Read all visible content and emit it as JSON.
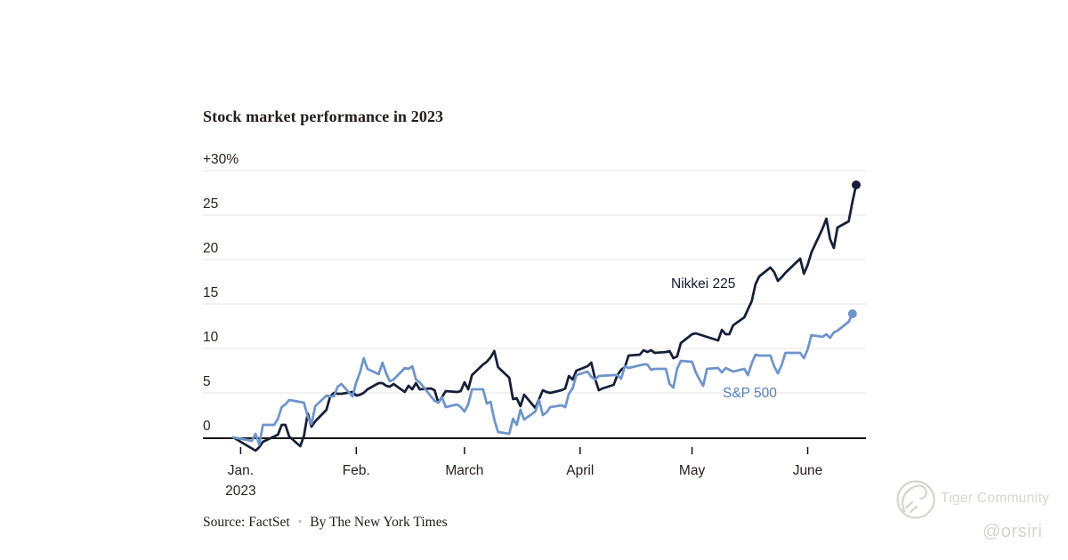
{
  "chart_data": {
    "type": "line",
    "title": "Stock market performance in 2023",
    "source": "Source: FactSet",
    "source_separator": "●",
    "byline": "By The New York Times",
    "grid_color": "#e8e4e0",
    "axis_color": "#17110e",
    "x_axis": {
      "tick_labels": [
        "Jan.",
        "Feb.",
        "March",
        "April",
        "May",
        "June"
      ],
      "tick_days": [
        2,
        33,
        62,
        93,
        123,
        154
      ],
      "sub_label": "2023",
      "domain_days": [
        0,
        167
      ],
      "note": "days since Dec 30 2022 close"
    },
    "y_axis": {
      "unit": "percent change",
      "range": [
        0,
        30
      ],
      "labels": [
        {
          "value": 30,
          "text": "+30%"
        },
        {
          "value": 25,
          "text": "25"
        },
        {
          "value": 20,
          "text": "20"
        },
        {
          "value": 15,
          "text": "15"
        },
        {
          "value": 10,
          "text": "10"
        },
        {
          "value": 5,
          "text": "5"
        },
        {
          "value": 0,
          "text": "0"
        }
      ]
    },
    "series": [
      {
        "name": "Nikkei 225",
        "color": "#151f38",
        "label_color": "#10192e",
        "end_dot": true,
        "points": [
          [
            0,
            0
          ],
          [
            6,
            -1.5
          ],
          [
            7,
            -1.1
          ],
          [
            8,
            -0.5
          ],
          [
            12,
            0.3
          ],
          [
            13,
            1.4
          ],
          [
            14,
            1.4
          ],
          [
            15,
            0.1
          ],
          [
            18,
            -1.0
          ],
          [
            19,
            0.2
          ],
          [
            20,
            2.7
          ],
          [
            21,
            1.2
          ],
          [
            22,
            1.8
          ],
          [
            25,
            3.1
          ],
          [
            26,
            4.6
          ],
          [
            27,
            5.0
          ],
          [
            28,
            4.9
          ],
          [
            29,
            4.9
          ],
          [
            32,
            5.1
          ],
          [
            33,
            4.7
          ],
          [
            34,
            4.8
          ],
          [
            35,
            5.0
          ],
          [
            36,
            5.4
          ],
          [
            39,
            6.1
          ],
          [
            40,
            6.1
          ],
          [
            41,
            5.8
          ],
          [
            42,
            5.7
          ],
          [
            43,
            6.0
          ],
          [
            46,
            5.1
          ],
          [
            47,
            5.8
          ],
          [
            48,
            5.4
          ],
          [
            49,
            6.1
          ],
          [
            50,
            5.4
          ],
          [
            53,
            5.5
          ],
          [
            54,
            5.3
          ],
          [
            55,
            3.9
          ],
          [
            57,
            5.2
          ],
          [
            60,
            5.1
          ],
          [
            61,
            5.2
          ],
          [
            62,
            6.2
          ],
          [
            63,
            5.4
          ],
          [
            64,
            7.0
          ],
          [
            67,
            8.2
          ],
          [
            68,
            8.5
          ],
          [
            69,
            9.0
          ],
          [
            70,
            9.7
          ],
          [
            71,
            7.9
          ],
          [
            74,
            6.7
          ],
          [
            75,
            4.3
          ],
          [
            76,
            4.4
          ],
          [
            77,
            3.5
          ],
          [
            78,
            4.8
          ],
          [
            81,
            3.3
          ],
          [
            83,
            5.3
          ],
          [
            84,
            5.1
          ],
          [
            85,
            5.0
          ],
          [
            88,
            5.3
          ],
          [
            89,
            5.5
          ],
          [
            90,
            6.9
          ],
          [
            91,
            6.5
          ],
          [
            92,
            7.5
          ],
          [
            95,
            8.0
          ],
          [
            96,
            8.4
          ],
          [
            97,
            6.6
          ],
          [
            98,
            5.3
          ],
          [
            99,
            5.5
          ],
          [
            102,
            5.9
          ],
          [
            103,
            7.0
          ],
          [
            104,
            7.6
          ],
          [
            105,
            7.9
          ],
          [
            106,
            9.2
          ],
          [
            109,
            9.3
          ],
          [
            110,
            9.8
          ],
          [
            111,
            9.6
          ],
          [
            112,
            9.8
          ],
          [
            113,
            9.5
          ],
          [
            116,
            9.6
          ],
          [
            117,
            9.7
          ],
          [
            118,
            8.9
          ],
          [
            119,
            9.1
          ],
          [
            120,
            10.6
          ],
          [
            123,
            11.6
          ],
          [
            124,
            11.7
          ],
          [
            130,
            10.9
          ],
          [
            131,
            12.1
          ],
          [
            132,
            11.6
          ],
          [
            133,
            11.6
          ],
          [
            134,
            12.6
          ],
          [
            137,
            13.5
          ],
          [
            138,
            14.4
          ],
          [
            139,
            15.3
          ],
          [
            140,
            17.2
          ],
          [
            141,
            18.1
          ],
          [
            144,
            19.1
          ],
          [
            145,
            18.6
          ],
          [
            146,
            17.6
          ],
          [
            147,
            18.0
          ],
          [
            148,
            18.5
          ],
          [
            151,
            19.7
          ],
          [
            152,
            20.1
          ],
          [
            153,
            18.4
          ],
          [
            154,
            19.4
          ],
          [
            155,
            20.8
          ],
          [
            158,
            23.5
          ],
          [
            159,
            24.6
          ],
          [
            160,
            22.3
          ],
          [
            161,
            21.3
          ],
          [
            162,
            23.6
          ],
          [
            165,
            24.3
          ],
          [
            166,
            26.5
          ],
          [
            167,
            28.4
          ]
        ]
      },
      {
        "name": "S&P 500",
        "color": "#6e95cb",
        "label_color": "#4f80bb",
        "end_dot": true,
        "points": [
          [
            0,
            0
          ],
          [
            5,
            -0.4
          ],
          [
            6,
            0.4
          ],
          [
            7,
            -0.8
          ],
          [
            8,
            1.4
          ],
          [
            11,
            1.4
          ],
          [
            12,
            2.1
          ],
          [
            13,
            3.4
          ],
          [
            14,
            3.7
          ],
          [
            15,
            4.2
          ],
          [
            19,
            3.9
          ],
          [
            20,
            2.3
          ],
          [
            21,
            1.5
          ],
          [
            22,
            3.5
          ],
          [
            25,
            4.7
          ],
          [
            26,
            4.6
          ],
          [
            27,
            4.6
          ],
          [
            28,
            5.7
          ],
          [
            29,
            6.0
          ],
          [
            32,
            4.6
          ],
          [
            33,
            6.2
          ],
          [
            34,
            7.3
          ],
          [
            35,
            8.9
          ],
          [
            36,
            7.7
          ],
          [
            39,
            7.1
          ],
          [
            40,
            8.4
          ],
          [
            41,
            7.2
          ],
          [
            42,
            6.3
          ],
          [
            43,
            6.5
          ],
          [
            46,
            7.8
          ],
          [
            47,
            7.7
          ],
          [
            48,
            8.0
          ],
          [
            49,
            6.5
          ],
          [
            50,
            6.2
          ],
          [
            54,
            4.1
          ],
          [
            55,
            3.9
          ],
          [
            56,
            4.5
          ],
          [
            57,
            3.4
          ],
          [
            60,
            3.7
          ],
          [
            61,
            3.4
          ],
          [
            62,
            2.9
          ],
          [
            63,
            3.7
          ],
          [
            64,
            5.4
          ],
          [
            67,
            5.4
          ],
          [
            68,
            3.8
          ],
          [
            69,
            4.0
          ],
          [
            70,
            2.0
          ],
          [
            71,
            0.6
          ],
          [
            74,
            0.4
          ],
          [
            75,
            2.1
          ],
          [
            76,
            1.4
          ],
          [
            77,
            3.1
          ],
          [
            78,
            2.0
          ],
          [
            81,
            2.9
          ],
          [
            82,
            4.2
          ],
          [
            83,
            2.5
          ],
          [
            84,
            2.8
          ],
          [
            85,
            3.4
          ],
          [
            88,
            3.6
          ],
          [
            89,
            3.4
          ],
          [
            90,
            4.9
          ],
          [
            91,
            5.5
          ],
          [
            92,
            7.0
          ],
          [
            95,
            7.4
          ],
          [
            96,
            6.8
          ],
          [
            97,
            6.5
          ],
          [
            98,
            6.9
          ],
          [
            102,
            7.0
          ],
          [
            103,
            7.0
          ],
          [
            104,
            6.6
          ],
          [
            105,
            8.0
          ],
          [
            106,
            7.8
          ],
          [
            109,
            8.1
          ],
          [
            110,
            8.2
          ],
          [
            111,
            8.2
          ],
          [
            112,
            7.6
          ],
          [
            113,
            7.7
          ],
          [
            116,
            7.7
          ],
          [
            117,
            6.0
          ],
          [
            118,
            5.6
          ],
          [
            119,
            7.7
          ],
          [
            120,
            8.6
          ],
          [
            123,
            8.5
          ],
          [
            124,
            7.3
          ],
          [
            125,
            6.5
          ],
          [
            126,
            5.8
          ],
          [
            127,
            7.7
          ],
          [
            130,
            7.8
          ],
          [
            131,
            7.3
          ],
          [
            132,
            7.8
          ],
          [
            133,
            7.6
          ],
          [
            134,
            7.4
          ],
          [
            137,
            7.7
          ],
          [
            138,
            7.0
          ],
          [
            139,
            8.3
          ],
          [
            140,
            9.3
          ],
          [
            141,
            9.2
          ],
          [
            144,
            9.2
          ],
          [
            145,
            8.0
          ],
          [
            146,
            7.2
          ],
          [
            147,
            8.1
          ],
          [
            148,
            9.5
          ],
          [
            152,
            9.5
          ],
          [
            153,
            8.9
          ],
          [
            154,
            9.9
          ],
          [
            155,
            11.5
          ],
          [
            158,
            11.3
          ],
          [
            159,
            11.6
          ],
          [
            160,
            11.2
          ],
          [
            161,
            11.8
          ],
          [
            162,
            12.0
          ],
          [
            165,
            13.0
          ],
          [
            166,
            13.9
          ]
        ]
      }
    ]
  },
  "watermark": {
    "brand": "Tiger Community",
    "handle": "@orsiri"
  }
}
